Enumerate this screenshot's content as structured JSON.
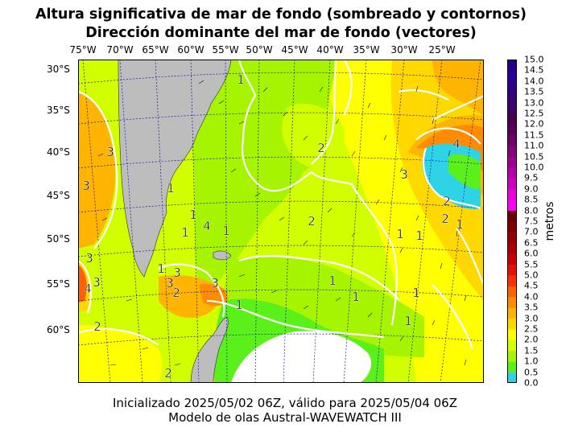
{
  "title_line1": "Altura significativa de mar de fondo (sombreado y contornos)",
  "title_line2": "Dirección dominante del mar de fondo (vectores)",
  "lon_labels": [
    "75°W",
    "70°W",
    "65°W",
    "60°W",
    "55°W",
    "50°W",
    "45°W",
    "40°W",
    "35°W",
    "30°W",
    "25°W"
  ],
  "lat_labels": [
    "30°S",
    "35°S",
    "40°S",
    "45°S",
    "50°S",
    "55°S",
    "60°S"
  ],
  "contour_labels": [
    "1",
    "1",
    "1",
    "1",
    "1",
    "1",
    "1",
    "1",
    "1",
    "1",
    "1",
    "1",
    "1",
    "1",
    "2",
    "2",
    "2",
    "2",
    "2",
    "2",
    "2",
    "3",
    "3",
    "3",
    "3",
    "3",
    "3",
    "3",
    "3",
    "4",
    "4",
    "4"
  ],
  "colorbar": {
    "units": "metros",
    "ticks": [
      "0.0",
      "0.5",
      "1.0",
      "1.5",
      "2.0",
      "2.5",
      "3.0",
      "3.5",
      "4.0",
      "4.5",
      "5.0",
      "5.5",
      "6.0",
      "6.5",
      "7.0",
      "7.5",
      "8.0",
      "8.5",
      "9.0",
      "9.5",
      "10.0",
      "10.5",
      "11.0",
      "11.5",
      "12.0",
      "12.5",
      "13.0",
      "13.5",
      "14.0",
      "14.5",
      "15.0"
    ],
    "colors": [
      "#2ed3e6",
      "#5cf01a",
      "#a6f400",
      "#d2ff00",
      "#ffff00",
      "#ffd800",
      "#ffb400",
      "#ff8c00",
      "#ff6000",
      "#ff3000",
      "#e81000",
      "#cc0000",
      "#b00000",
      "#960000",
      "#800000",
      "#6a0000",
      "#ff00ff",
      "#ee00dd",
      "#d000c0",
      "#b800aa",
      "#9e0092",
      "#86007c",
      "#6e006a",
      "#5a005a",
      "#4a004a",
      "#40006a",
      "#3a007a",
      "#30008a",
      "#2a009a",
      "#240088"
    ]
  },
  "footer_line1": "Inicializado 2025/05/02 06Z, válido para 2025/05/04 06Z",
  "footer_line2": "Modelo de olas Austral-WAVEWATCH III",
  "colors": {
    "land": "#bdbdbd",
    "contour": "#ffffff",
    "graticule": "#1a1aa0"
  }
}
